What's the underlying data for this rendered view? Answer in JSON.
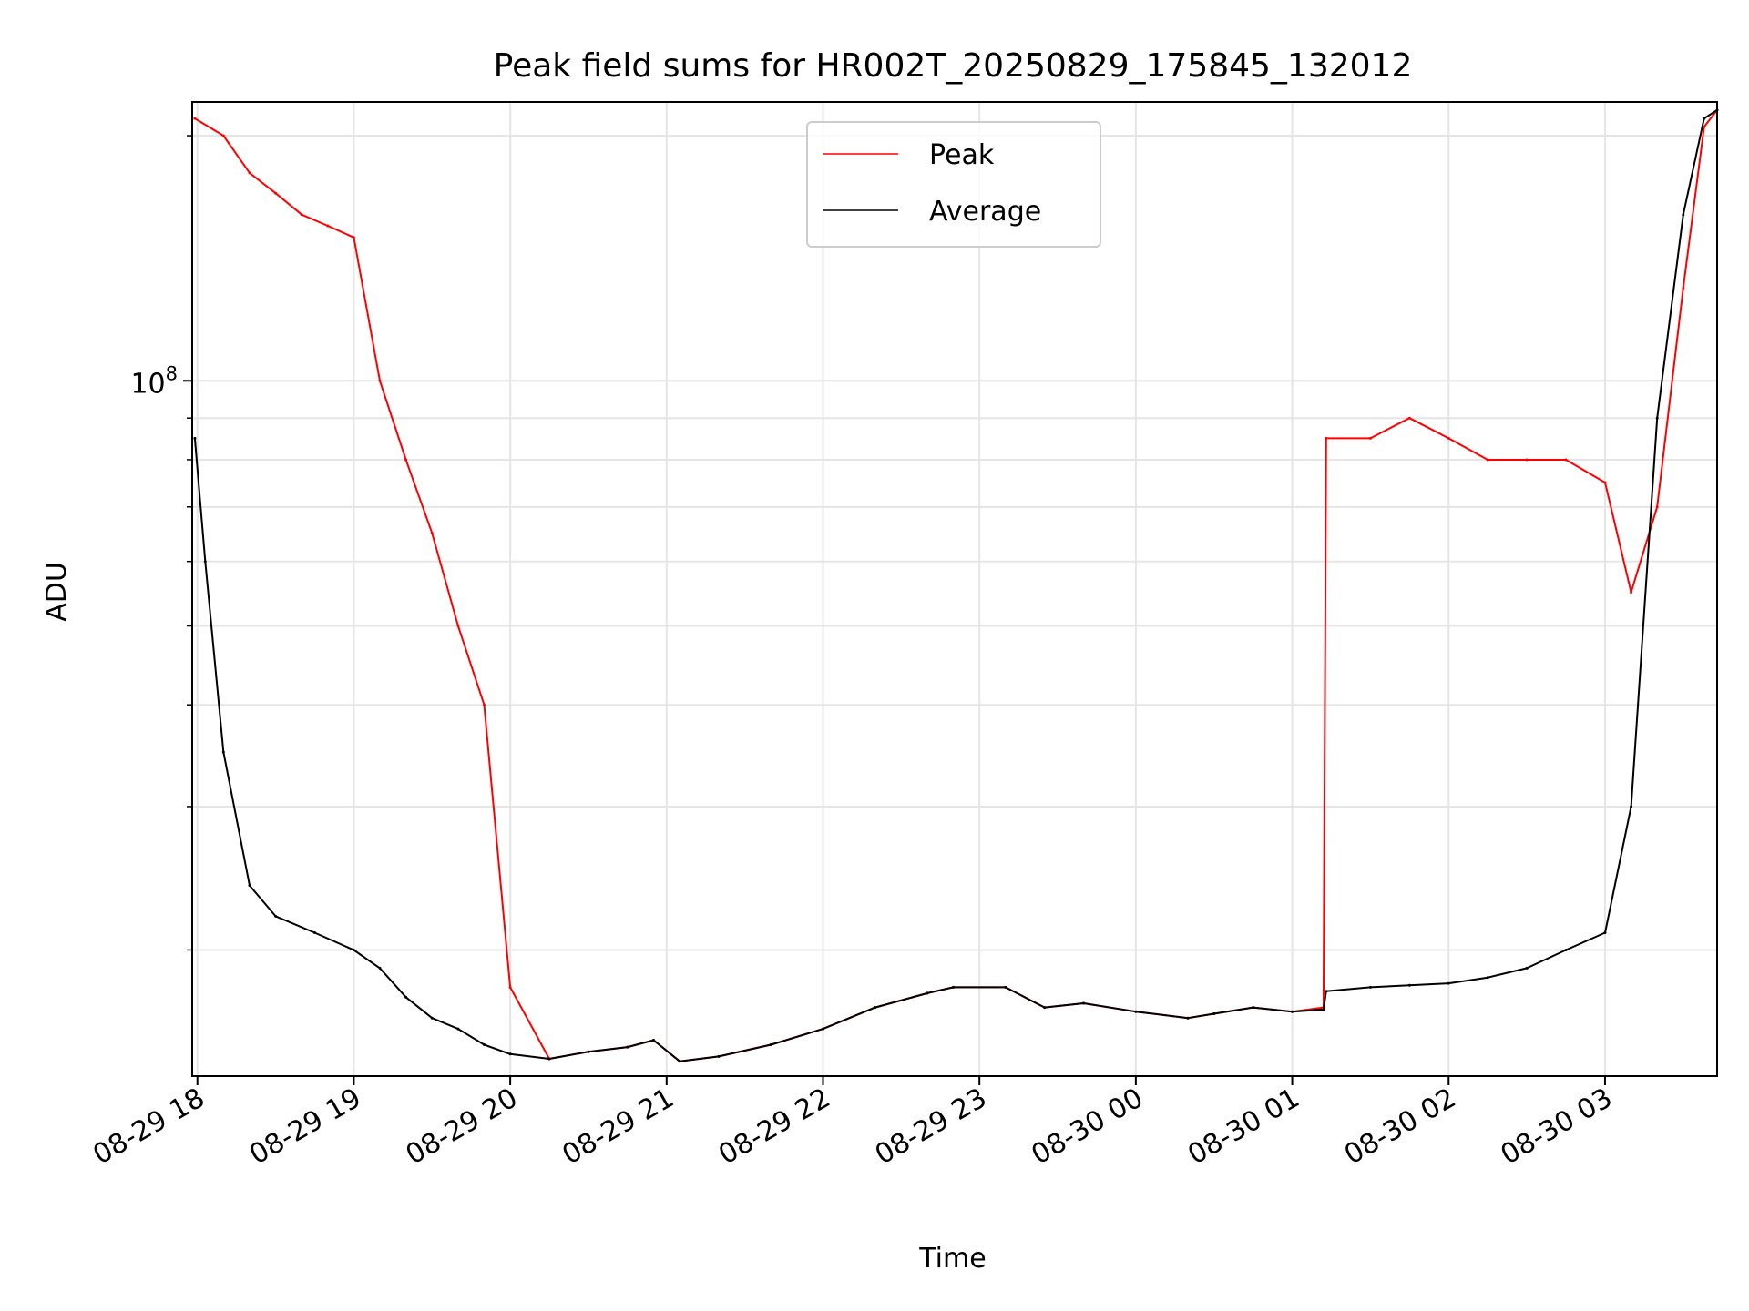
{
  "chart_data": {
    "type": "line",
    "title": "Peak field sums for HR002T_20250829_175845_132012",
    "xlabel": "Time",
    "ylabel": "ADU",
    "y_scale": "log",
    "y_major_tick_labels": [
      {
        "value": 100000000,
        "base": "10",
        "exponent": "8"
      }
    ],
    "y_minor_ticks": [
      20000000,
      30000000,
      40000000,
      50000000,
      60000000,
      70000000,
      80000000,
      90000000,
      200000000
    ],
    "ylim": [
      14000000,
      220000000
    ],
    "xlim": [
      "2025-08-29 17:58",
      "2025-08-30 03:43"
    ],
    "x_ticks": [
      {
        "time": "2025-08-29 18:00",
        "label": "08-29 18"
      },
      {
        "time": "2025-08-29 19:00",
        "label": "08-29 19"
      },
      {
        "time": "2025-08-29 20:00",
        "label": "08-29 20"
      },
      {
        "time": "2025-08-29 21:00",
        "label": "08-29 21"
      },
      {
        "time": "2025-08-29 22:00",
        "label": "08-29 22"
      },
      {
        "time": "2025-08-29 23:00",
        "label": "08-29 23"
      },
      {
        "time": "2025-08-30 00:00",
        "label": "08-30 00"
      },
      {
        "time": "2025-08-30 01:00",
        "label": "08-30 01"
      },
      {
        "time": "2025-08-30 02:00",
        "label": "08-30 02"
      },
      {
        "time": "2025-08-30 03:00",
        "label": "08-30 03"
      }
    ],
    "grid": true,
    "legend_position": "top-center",
    "series": [
      {
        "name": "Peak",
        "color": "#ff0000",
        "x": [
          "2025-08-29 17:59",
          "2025-08-29 18:10",
          "2025-08-29 18:20",
          "2025-08-29 18:30",
          "2025-08-29 18:40",
          "2025-08-29 18:50",
          "2025-08-29 19:00",
          "2025-08-29 19:10",
          "2025-08-29 19:20",
          "2025-08-29 19:30",
          "2025-08-29 19:40",
          "2025-08-29 19:50",
          "2025-08-29 20:00",
          "2025-08-29 20:15",
          "2025-08-29 20:30",
          "2025-08-29 20:45",
          "2025-08-29 20:55",
          "2025-08-29 21:05",
          "2025-08-29 21:20",
          "2025-08-29 21:40",
          "2025-08-29 22:00",
          "2025-08-29 22:20",
          "2025-08-29 22:40",
          "2025-08-29 22:50",
          "2025-08-29 23:10",
          "2025-08-29 23:25",
          "2025-08-29 23:40",
          "2025-08-30 00:00",
          "2025-08-30 00:20",
          "2025-08-30 00:30",
          "2025-08-30 00:45",
          "2025-08-30 01:00",
          "2025-08-30 01:12",
          "2025-08-30 01:13",
          "2025-08-30 01:30",
          "2025-08-30 01:45",
          "2025-08-30 02:00",
          "2025-08-30 02:15",
          "2025-08-30 02:30",
          "2025-08-30 02:45",
          "2025-08-30 03:00",
          "2025-08-30 03:10",
          "2025-08-30 03:20",
          "2025-08-30 03:30",
          "2025-08-30 03:38",
          "2025-08-30 03:43"
        ],
        "values": [
          210000000,
          200000000,
          180000000,
          170000000,
          160000000,
          155000000,
          150000000,
          100000000,
          80000000,
          65000000,
          50000000,
          40000000,
          18000000,
          14700000,
          15000000,
          15200000,
          15500000,
          14600000,
          14800000,
          15300000,
          16000000,
          17000000,
          17700000,
          18000000,
          18000000,
          17000000,
          17200000,
          16800000,
          16500000,
          16700000,
          17000000,
          16800000,
          17000000,
          85000000,
          85000000,
          90000000,
          85000000,
          80000000,
          80000000,
          80000000,
          75000000,
          55000000,
          70000000,
          130000000,
          205000000,
          215000000
        ]
      },
      {
        "name": "Average",
        "color": "#000000",
        "x": [
          "2025-08-29 17:59",
          "2025-08-29 18:03",
          "2025-08-29 18:10",
          "2025-08-29 18:20",
          "2025-08-29 18:30",
          "2025-08-29 18:45",
          "2025-08-29 19:00",
          "2025-08-29 19:10",
          "2025-08-29 19:20",
          "2025-08-29 19:30",
          "2025-08-29 19:40",
          "2025-08-29 19:50",
          "2025-08-29 20:00",
          "2025-08-29 20:15",
          "2025-08-29 20:30",
          "2025-08-29 20:45",
          "2025-08-29 20:55",
          "2025-08-29 21:05",
          "2025-08-29 21:20",
          "2025-08-29 21:40",
          "2025-08-29 22:00",
          "2025-08-29 22:20",
          "2025-08-29 22:40",
          "2025-08-29 22:50",
          "2025-08-29 23:10",
          "2025-08-29 23:25",
          "2025-08-29 23:40",
          "2025-08-30 00:00",
          "2025-08-30 00:20",
          "2025-08-30 00:30",
          "2025-08-30 00:45",
          "2025-08-30 01:00",
          "2025-08-30 01:12",
          "2025-08-30 01:13",
          "2025-08-30 01:30",
          "2025-08-30 01:45",
          "2025-08-30 02:00",
          "2025-08-30 02:15",
          "2025-08-30 02:30",
          "2025-08-30 02:45",
          "2025-08-30 03:00",
          "2025-08-30 03:10",
          "2025-08-30 03:20",
          "2025-08-30 03:30",
          "2025-08-30 03:38",
          "2025-08-30 03:43"
        ],
        "values": [
          85000000,
          60000000,
          35000000,
          24000000,
          22000000,
          21000000,
          20000000,
          19000000,
          17500000,
          16500000,
          16000000,
          15300000,
          14900000,
          14700000,
          15000000,
          15200000,
          15500000,
          14600000,
          14800000,
          15300000,
          16000000,
          17000000,
          17700000,
          18000000,
          18000000,
          17000000,
          17200000,
          16800000,
          16500000,
          16700000,
          17000000,
          16800000,
          16900000,
          17800000,
          18000000,
          18100000,
          18200000,
          18500000,
          19000000,
          20000000,
          21000000,
          30000000,
          90000000,
          160000000,
          210000000,
          215000000
        ]
      }
    ]
  }
}
